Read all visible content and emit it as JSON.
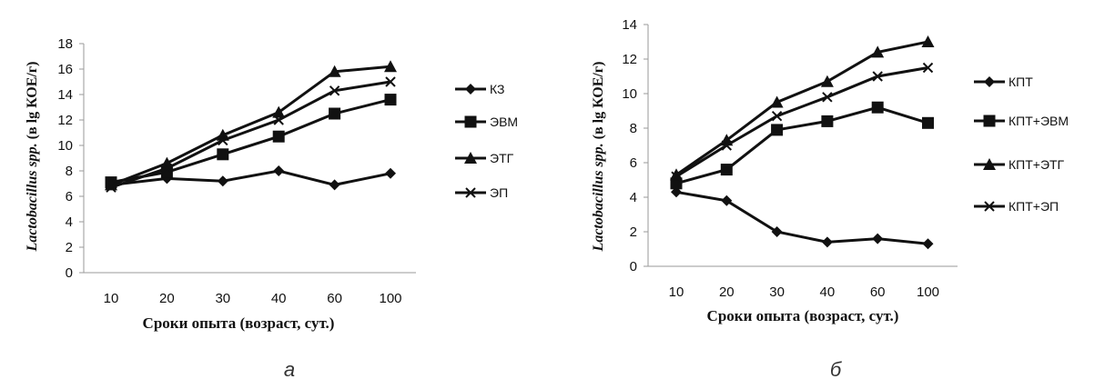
{
  "chart_data": [
    {
      "type": "line",
      "panel_label": "а",
      "xlabel": "Сроки опыта (возраст, сут.)",
      "ylabel_italic": "Lactobacillus spp.",
      "ylabel_rest": " (в lg КОЕ/г)",
      "categories": [
        "10",
        "20",
        "30",
        "40",
        "60",
        "100"
      ],
      "ylim": [
        0,
        18
      ],
      "yticks": [
        0,
        2,
        4,
        6,
        8,
        10,
        12,
        14,
        16,
        18
      ],
      "grid": false,
      "legend": "right",
      "series": [
        {
          "name": "КЗ",
          "marker": "diamond",
          "values": [
            6.9,
            7.4,
            7.2,
            8.0,
            6.9,
            7.8
          ]
        },
        {
          "name": "ЭВМ",
          "marker": "square",
          "values": [
            7.1,
            7.9,
            9.3,
            10.7,
            12.5,
            13.6
          ]
        },
        {
          "name": "ЭТГ",
          "marker": "triangle",
          "values": [
            6.9,
            8.6,
            10.8,
            12.6,
            15.8,
            16.2
          ]
        },
        {
          "name": "ЭП",
          "marker": "x",
          "values": [
            6.7,
            8.2,
            10.4,
            12.0,
            14.3,
            15.0
          ]
        }
      ]
    },
    {
      "type": "line",
      "panel_label": "б",
      "xlabel": "Сроки опыта (возраст, сут.)",
      "ylabel_italic": "Lactobacillus spp.",
      "ylabel_rest": " (в lg КОЕ/г)",
      "categories": [
        "10",
        "20",
        "30",
        "40",
        "60",
        "100"
      ],
      "ylim": [
        0,
        14
      ],
      "yticks": [
        0,
        2,
        4,
        6,
        8,
        10,
        12,
        14
      ],
      "grid": false,
      "legend": "right",
      "series": [
        {
          "name": "КПТ",
          "marker": "diamond",
          "values": [
            4.3,
            3.8,
            2.0,
            1.4,
            1.6,
            1.3
          ]
        },
        {
          "name": "КПТ+ЭВМ",
          "marker": "square",
          "values": [
            4.8,
            5.6,
            7.9,
            8.4,
            9.2,
            8.3
          ]
        },
        {
          "name": "КПТ+ЭТГ",
          "marker": "triangle",
          "values": [
            5.3,
            7.3,
            9.5,
            10.7,
            12.4,
            13.0
          ]
        },
        {
          "name": "КПТ+ЭП",
          "marker": "x",
          "values": [
            5.2,
            7.0,
            8.7,
            9.8,
            11.0,
            11.5
          ]
        }
      ]
    }
  ]
}
